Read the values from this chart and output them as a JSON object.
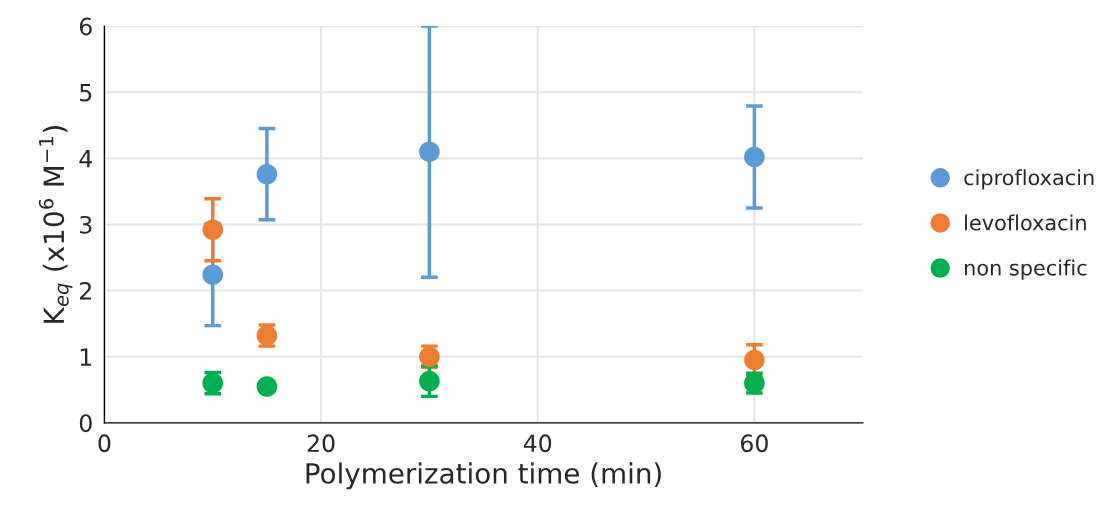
{
  "chart_data": {
    "type": "scatter",
    "xlabel": "Polymerization time (min)",
    "ylabel": "K$_{eq}$ (x10$^{6}$ M$^{−1}$)",
    "x": [
      10,
      15,
      30,
      60
    ],
    "series": [
      {
        "name": "ciprofloxacin",
        "color": "#5b9bd5",
        "values": [
          2.24,
          3.76,
          4.1,
          4.02
        ],
        "errors": [
          0.77,
          0.69,
          1.9,
          0.77
        ]
      },
      {
        "name": "levofloxacin",
        "color": "#ed7d31",
        "values": [
          2.92,
          1.32,
          1.0,
          0.95
        ],
        "errors": [
          0.47,
          0.16,
          0.16,
          0.23
        ]
      },
      {
        "name": "non specific",
        "color": "#00b050",
        "values": [
          0.6,
          0.55,
          0.63,
          0.6
        ],
        "errors": [
          0.16,
          0.05,
          0.23,
          0.15
        ]
      }
    ],
    "xlim": [
      0,
      70
    ],
    "xticks": [
      0,
      20,
      40,
      60
    ],
    "ylim": [
      0,
      6
    ],
    "yticks": [
      0,
      1,
      2,
      3,
      4,
      5,
      6
    ],
    "grid": true,
    "legend": "right",
    "marker": "circle"
  }
}
